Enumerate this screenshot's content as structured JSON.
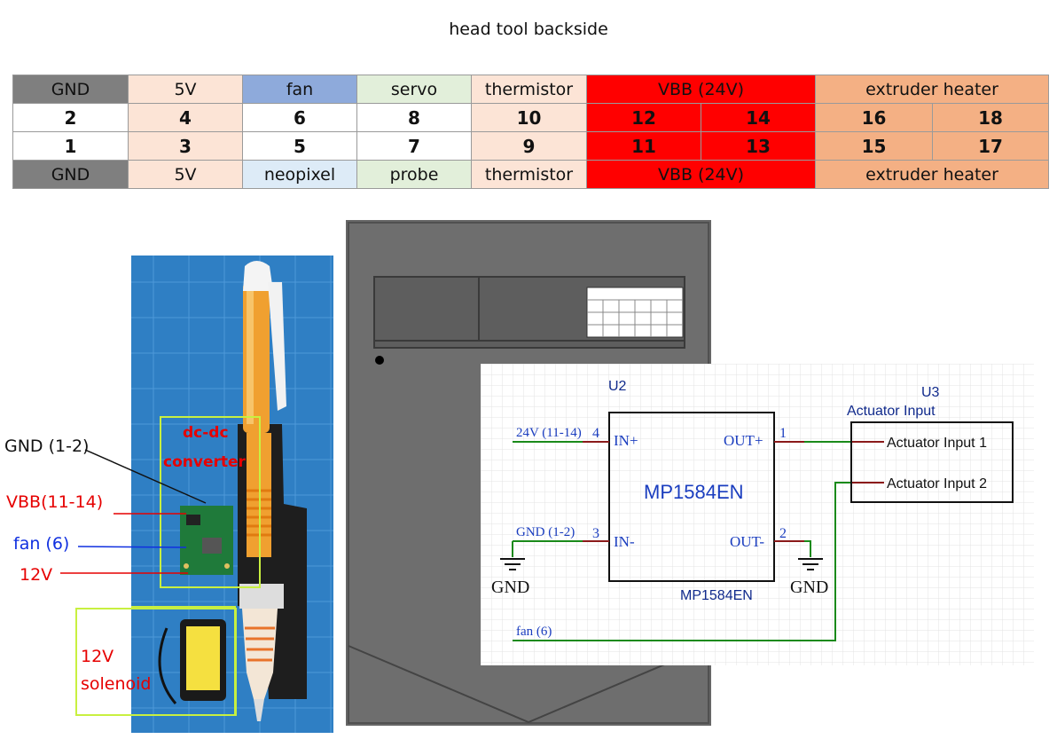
{
  "title": "head tool backside",
  "pin_table": {
    "rows": [
      [
        {
          "text": "GND",
          "span": 1,
          "color": "#7f7f7f"
        },
        {
          "text": "5V",
          "span": 1,
          "color": "#fce4d6"
        },
        {
          "text": "fan",
          "span": 1,
          "color": "#8eaadb"
        },
        {
          "text": "servo",
          "span": 1,
          "color": "#e2efda"
        },
        {
          "text": "thermistor",
          "span": 1,
          "color": "#fce4d6"
        },
        {
          "text": "VBB (24V)",
          "span": 2,
          "color": "#ff0000"
        },
        {
          "text": "extruder heater",
          "span": 2,
          "color": "#f4b084"
        }
      ],
      [
        {
          "text": "2",
          "span": 1,
          "color": "#ffffff"
        },
        {
          "text": "4",
          "span": 1,
          "color": "#fce4d6"
        },
        {
          "text": "6",
          "span": 1,
          "color": "#ffffff"
        },
        {
          "text": "8",
          "span": 1,
          "color": "#ffffff"
        },
        {
          "text": "10",
          "span": 1,
          "color": "#fce4d6"
        },
        {
          "text": "12",
          "span": 1,
          "color": "#ff0000"
        },
        {
          "text": "14",
          "span": 1,
          "color": "#ff0000"
        },
        {
          "text": "16",
          "span": 1,
          "color": "#f4b084"
        },
        {
          "text": "18",
          "span": 1,
          "color": "#f4b084"
        }
      ],
      [
        {
          "text": "1",
          "span": 1,
          "color": "#ffffff"
        },
        {
          "text": "3",
          "span": 1,
          "color": "#fce4d6"
        },
        {
          "text": "5",
          "span": 1,
          "color": "#ffffff"
        },
        {
          "text": "7",
          "span": 1,
          "color": "#ffffff"
        },
        {
          "text": "9",
          "span": 1,
          "color": "#fce4d6"
        },
        {
          "text": "11",
          "span": 1,
          "color": "#ff0000"
        },
        {
          "text": "13",
          "span": 1,
          "color": "#ff0000"
        },
        {
          "text": "15",
          "span": 1,
          "color": "#f4b084"
        },
        {
          "text": "17",
          "span": 1,
          "color": "#f4b084"
        }
      ],
      [
        {
          "text": "GND",
          "span": 1,
          "color": "#7f7f7f"
        },
        {
          "text": "5V",
          "span": 1,
          "color": "#fce4d6"
        },
        {
          "text": "neopixel",
          "span": 1,
          "color": "#ddebf7"
        },
        {
          "text": "probe",
          "span": 1,
          "color": "#e2efda"
        },
        {
          "text": "thermistor",
          "span": 1,
          "color": "#fce4d6"
        },
        {
          "text": "VBB (24V)",
          "span": 2,
          "color": "#ff0000"
        },
        {
          "text": "extruder heater",
          "span": 2,
          "color": "#f4b084"
        }
      ]
    ]
  },
  "photo_labels": {
    "gnd": "GND (1-2)",
    "vbb": "VBB(11-14)",
    "fan": "fan (6)",
    "v12": "12V",
    "converter_line1": "dc-dc",
    "converter_line2": "converter",
    "solenoid_line1": "12V",
    "solenoid_line2": "solenoid"
  },
  "schematic": {
    "u2_ref": "U2",
    "u2_name": "MP1584EN",
    "u2_value": "MP1584EN",
    "u3_ref": "U3",
    "u3_name": "Actuator Input",
    "pins": {
      "in_plus": "IN+",
      "in_minus": "IN-",
      "out_plus": "OUT+",
      "out_minus": "OUT-",
      "n4": "4",
      "n3": "3",
      "n1": "1",
      "n2": "2",
      "act1": "Actuator Input 1",
      "act2": "Actuator Input 2"
    },
    "nets": {
      "v24": "24V (11-14)",
      "gnd_in": "GND (1-2)",
      "fan": "fan (6)",
      "gnd_left": "GND",
      "gnd_right": "GND"
    }
  }
}
